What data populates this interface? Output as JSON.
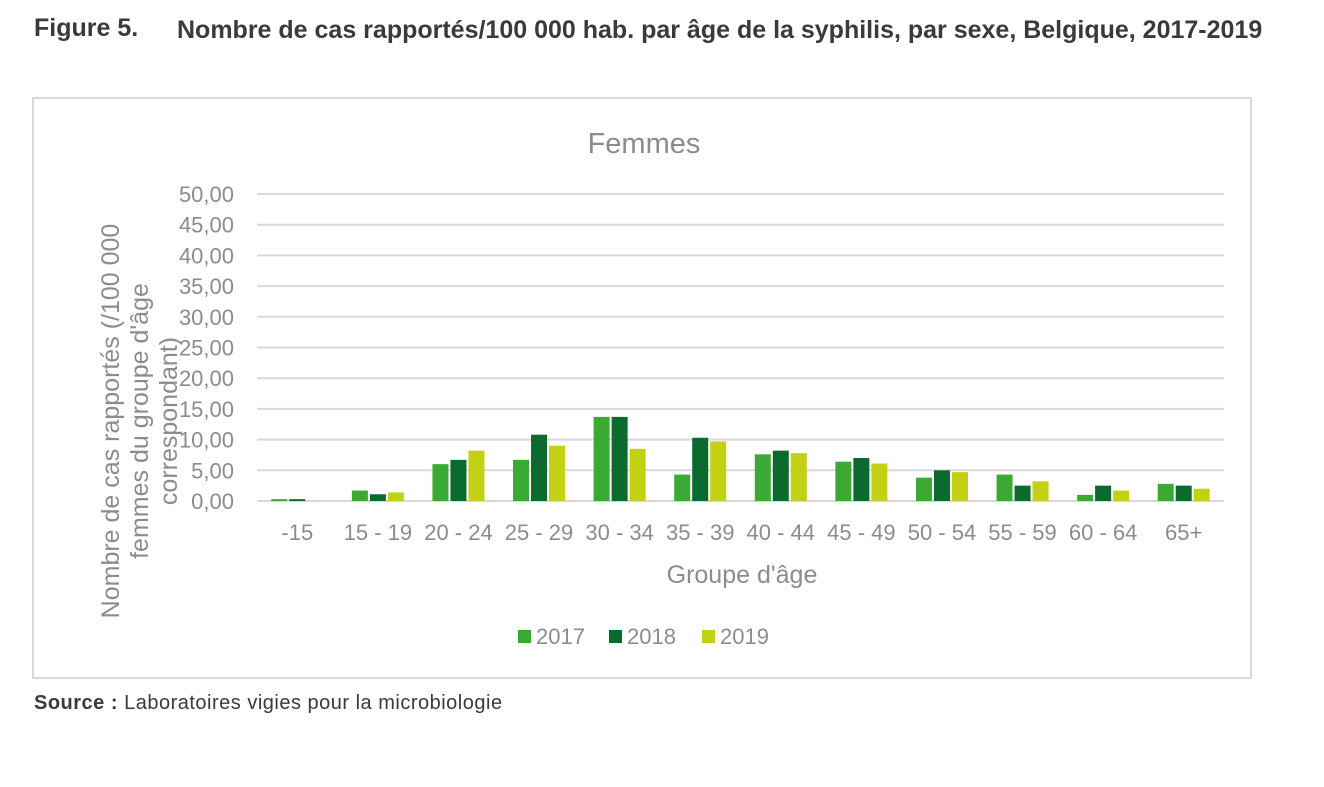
{
  "figure": {
    "label": "Figure 5.",
    "title": "Nombre de cas rapportés/100 000 hab. par âge de la syphilis, par sexe, Belgique, 2017-2019"
  },
  "source": {
    "label": "Source :",
    "text": "Laboratoires vigies pour la microbiologie"
  },
  "colors": {
    "s2017": "#3aaa35",
    "s2018": "#0b6a2e",
    "s2019": "#c2d111",
    "grid": "#d9d9d9",
    "text": "#8c8c8c"
  },
  "chart_data": {
    "type": "bar",
    "title": "Femmes",
    "xlabel": "Groupe d'âge",
    "ylabel": "Nombre de cas rapportés (/100 000 femmes du groupe d'âge correspondant)",
    "ylim": [
      0,
      50
    ],
    "yticks": [
      "0,00",
      "5,00",
      "10,00",
      "15,00",
      "20,00",
      "25,00",
      "30,00",
      "35,00",
      "40,00",
      "45,00",
      "50,00"
    ],
    "grid": true,
    "legend_position": "bottom",
    "categories": [
      "-15",
      "15 - 19",
      "20 - 24",
      "25 - 29",
      "30 - 34",
      "35 - 39",
      "40 - 44",
      "45 - 49",
      "50 - 54",
      "55 - 59",
      "60 - 64",
      "65+"
    ],
    "series": [
      {
        "name": "2017",
        "values": [
          0.3,
          1.7,
          6.0,
          6.7,
          13.7,
          4.3,
          7.6,
          6.4,
          3.8,
          4.3,
          1.0,
          2.8
        ]
      },
      {
        "name": "2018",
        "values": [
          0.3,
          1.1,
          6.7,
          10.8,
          13.7,
          10.3,
          8.2,
          7.0,
          5.0,
          2.5,
          2.5,
          2.5
        ]
      },
      {
        "name": "2019",
        "values": [
          0.0,
          1.4,
          8.2,
          9.0,
          8.5,
          9.7,
          7.8,
          6.1,
          4.7,
          3.2,
          1.7,
          2.0
        ]
      }
    ]
  }
}
